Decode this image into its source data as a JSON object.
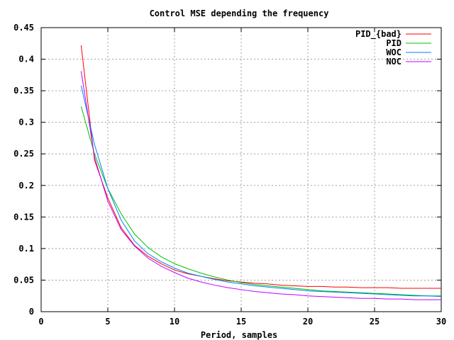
{
  "chart_data": {
    "type": "line",
    "title": "Control MSE depending the frequency",
    "xlabel": "Period, samples",
    "ylabel": "",
    "xlim": [
      0,
      30
    ],
    "ylim": [
      0,
      0.45
    ],
    "xticks": [
      "0",
      "5",
      "10",
      "15",
      "20",
      "25",
      "30"
    ],
    "yticks": [
      "0",
      "0.05",
      "0.1",
      "0.15",
      "0.2",
      "0.25",
      "0.3",
      "0.35",
      "0.4",
      "0.45"
    ],
    "grid": true,
    "legend_position": "top-right",
    "x": [
      3,
      4,
      5,
      6,
      7,
      8,
      9,
      10,
      11,
      12,
      13,
      14,
      15,
      16,
      17,
      18,
      19,
      20,
      21,
      22,
      23,
      24,
      25,
      26,
      27,
      28,
      29,
      30
    ],
    "series": [
      {
        "name": "PID_{bad}",
        "color": "#ff0000",
        "values": [
          0.422,
          0.24,
          0.18,
          0.133,
          0.105,
          0.088,
          0.076,
          0.066,
          0.06,
          0.056,
          0.052,
          0.049,
          0.047,
          0.045,
          0.044,
          0.042,
          0.041,
          0.04,
          0.04,
          0.039,
          0.039,
          0.038,
          0.038,
          0.038,
          0.037,
          0.037,
          0.037,
          0.037
        ]
      },
      {
        "name": "PID",
        "color": "#00c000",
        "values": [
          0.325,
          0.25,
          0.195,
          0.155,
          0.123,
          0.102,
          0.087,
          0.076,
          0.068,
          0.061,
          0.055,
          0.05,
          0.046,
          0.043,
          0.041,
          0.039,
          0.037,
          0.035,
          0.033,
          0.032,
          0.031,
          0.03,
          0.029,
          0.028,
          0.027,
          0.026,
          0.025,
          0.025
        ]
      },
      {
        "name": "WOC",
        "color": "#0080ff",
        "values": [
          0.358,
          0.265,
          0.195,
          0.145,
          0.112,
          0.092,
          0.079,
          0.069,
          0.061,
          0.056,
          0.051,
          0.047,
          0.044,
          0.041,
          0.039,
          0.037,
          0.035,
          0.033,
          0.032,
          0.031,
          0.03,
          0.029,
          0.028,
          0.027,
          0.026,
          0.025,
          0.025,
          0.024
        ]
      },
      {
        "name": "NOC",
        "color": "#c000ff",
        "values": [
          0.381,
          0.245,
          0.175,
          0.13,
          0.104,
          0.085,
          0.072,
          0.062,
          0.053,
          0.047,
          0.042,
          0.038,
          0.035,
          0.032,
          0.03,
          0.028,
          0.027,
          0.025,
          0.024,
          0.023,
          0.022,
          0.021,
          0.021,
          0.02,
          0.02,
          0.019,
          0.019,
          0.019
        ]
      }
    ]
  }
}
